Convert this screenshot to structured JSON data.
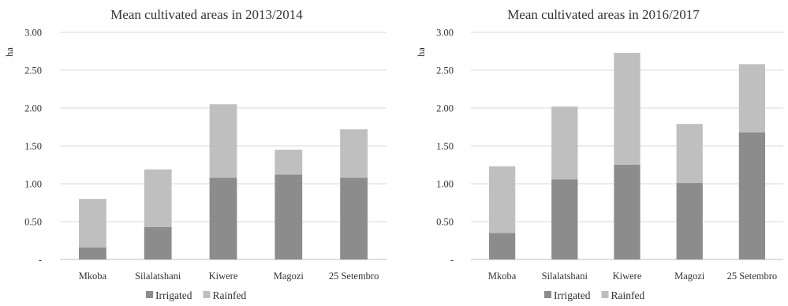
{
  "colors": {
    "irrigated": "#8c8c8c",
    "rainfed": "#bfbfbf",
    "grid": "#d9d9d9",
    "axis": "#bfbfbf"
  },
  "chart_data": [
    {
      "type": "bar",
      "stacked": true,
      "title": "Mean cultivated areas in 2013/2014",
      "ylabel": "ha",
      "ylim": [
        0,
        3
      ],
      "yticks": [
        "-",
        "0.50",
        "1.00",
        "1.50",
        "2.00",
        "2.50",
        "3.00"
      ],
      "categories": [
        "Mkoba",
        "Silalatshani",
        "Kiwere",
        "Magozi",
        "25 Setembro"
      ],
      "series": [
        {
          "name": "Irrigated",
          "values": [
            0.16,
            0.43,
            1.08,
            1.12,
            1.08
          ]
        },
        {
          "name": "Rainfed",
          "values": [
            0.64,
            0.76,
            0.97,
            0.33,
            0.64
          ]
        }
      ],
      "legend": "bottom",
      "grid": true
    },
    {
      "type": "bar",
      "stacked": true,
      "title": "Mean cultivated areas in 2016/2017",
      "ylabel": "ha",
      "ylim": [
        0,
        3
      ],
      "yticks": [
        "-",
        "0.50",
        "1.00",
        "1.50",
        "2.00",
        "2.50",
        "3.00"
      ],
      "categories": [
        "Mkoba",
        "Silalatshani",
        "Kiwere",
        "Magozi",
        "25 Setembro"
      ],
      "series": [
        {
          "name": "Irrigated",
          "values": [
            0.35,
            1.06,
            1.25,
            1.01,
            1.68
          ]
        },
        {
          "name": "Rainfed",
          "values": [
            0.88,
            0.96,
            1.48,
            0.78,
            0.9
          ]
        }
      ],
      "legend": "bottom",
      "grid": true
    }
  ]
}
